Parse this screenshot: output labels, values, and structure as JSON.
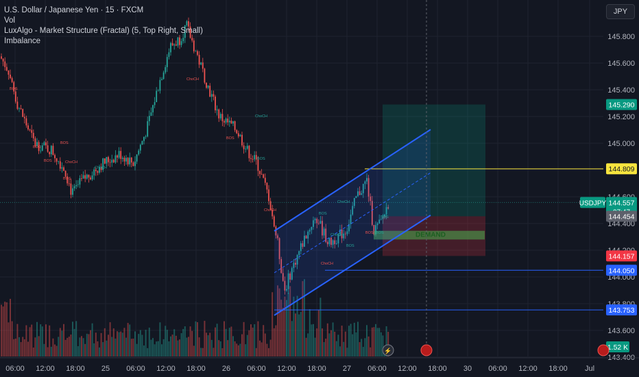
{
  "header": {
    "symbol_line": "U.S. Dollar / Japanese Yen · 15 · FXCM",
    "indicators": [
      "Vol",
      "LuxAlgo - Market Structure (Fractal) (5, Top Right, Small)",
      "Imbalance"
    ],
    "currency_button": "JPY"
  },
  "colors": {
    "background": "#131722",
    "bull": "#26a69a",
    "bear": "#ef5350",
    "channel": "#2962ff",
    "take_profit": "#089981",
    "stop_loss": "#f23645",
    "demand": "#4caf50",
    "yellow_line": "#f7e43e"
  },
  "chart_data": {
    "type": "candlestick",
    "symbol": "USDJPY",
    "interval": "15",
    "price_axis": {
      "ticks": [
        "145.800",
        "145.600",
        "145.400",
        "145.200",
        "145.000",
        "144.800",
        "144.600",
        "144.400",
        "144.200",
        "144.000",
        "143.800",
        "143.600",
        "143.400"
      ],
      "ylim": [
        143.4,
        146.05
      ]
    },
    "time_axis": {
      "ticks": [
        "06:00",
        "12:00",
        "18:00",
        "25",
        "06:00",
        "12:00",
        "18:00",
        "26",
        "06:00",
        "12:00",
        "18:00",
        "27",
        "06:00",
        "12:00",
        "18:00",
        "30",
        "06:00",
        "12:00",
        "18:00",
        "Jul"
      ]
    },
    "price_labels": [
      {
        "text": "145.290",
        "price": 145.29,
        "color": "#089981"
      },
      {
        "text": "144.809",
        "price": 144.809,
        "color": "#f7e43e"
      },
      {
        "text": "144.557",
        "price": 144.557,
        "color": "#089981",
        "symbol": "USDJPY",
        "countdown": "07:47"
      },
      {
        "text": "144.454",
        "price": 144.454,
        "color": "#5d606b"
      },
      {
        "text": "144.157",
        "price": 144.157,
        "color": "#f23645"
      },
      {
        "text": "144.050",
        "price": 144.05,
        "color": "#2962ff"
      },
      {
        "text": "143.753",
        "price": 143.753,
        "color": "#2962ff"
      }
    ],
    "volume_label": "1.52 K",
    "structure_labels": [
      "BOS",
      "BOS",
      "BOS",
      "BOS",
      "BOS",
      "ChoCH",
      "ChoCH",
      "BOS",
      "BOS",
      "ChoCH",
      "ChoCH",
      "ChoCH",
      "BOS",
      "ChoCH",
      "ChoCH",
      "BOS",
      "BOS",
      "BOS",
      "BOS",
      "ChoCH"
    ],
    "zones": {
      "demand_label": "DEMAND",
      "take_profit": 145.29,
      "entry": 144.454,
      "stop_loss": 144.157
    }
  }
}
